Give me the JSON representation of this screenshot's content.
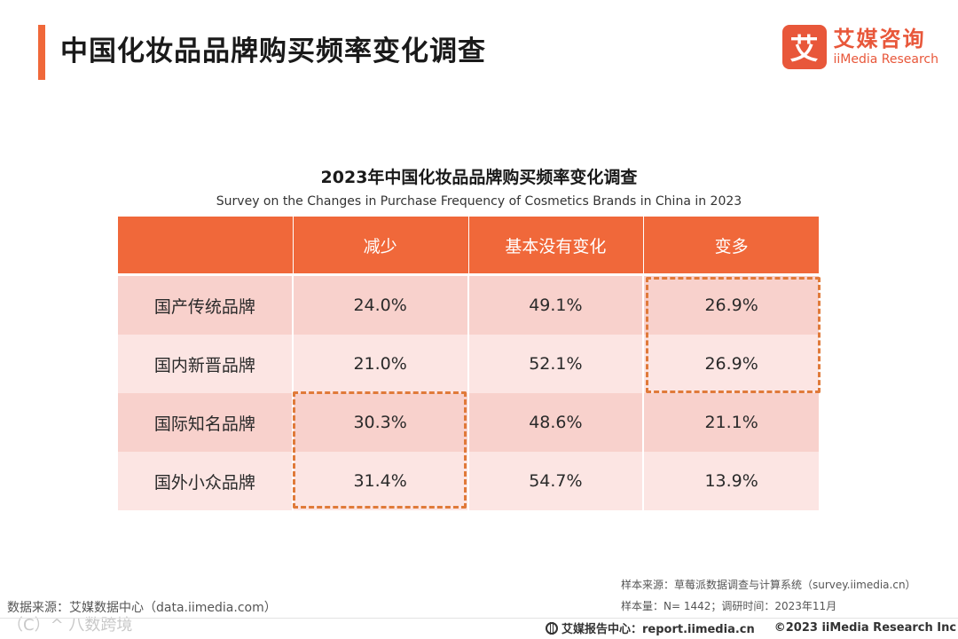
{
  "header": {
    "title": "中国化妆品品牌购买频率变化调查",
    "logo": {
      "mark": "艾",
      "name_cn": "艾媒咨询",
      "name_en": "iiMedia Research"
    }
  },
  "chart_data": {
    "type": "table",
    "title": "2023年中国化妆品品牌购买频率变化调查",
    "subtitle": "Survey on the Changes in Purchase Frequency of Cosmetics Brands in China in 2023",
    "columns": [
      "",
      "减少",
      "基本没有变化",
      "变多"
    ],
    "rows": [
      {
        "label": "国产传统品牌",
        "values": [
          "24.0%",
          "49.1%",
          "26.9%"
        ]
      },
      {
        "label": "国内新晋品牌",
        "values": [
          "21.0%",
          "52.1%",
          "26.9%"
        ]
      },
      {
        "label": "国际知名品牌",
        "values": [
          "30.3%",
          "48.6%",
          "21.1%"
        ]
      },
      {
        "label": "国外小众品牌",
        "values": [
          "31.4%",
          "54.7%",
          "13.9%"
        ]
      }
    ],
    "highlights": [
      {
        "column": "变多",
        "rows": [
          "国产传统品牌",
          "国内新晋品牌"
        ]
      },
      {
        "column": "减少",
        "rows": [
          "国际知名品牌",
          "国外小众品牌"
        ]
      }
    ]
  },
  "source": {
    "sample_source": "样本来源：草莓派数据调查与计算系统（survey.iimedia.cn）",
    "sample_size": "样本量：N= 1442；调研时间：2023年11月",
    "data_source": "数据来源：艾媒数据中心（data.iimedia.com）"
  },
  "watermark": "（C）^ 八数跨境",
  "footer": {
    "report_center": "艾媒报告中心：report.iimedia.cn",
    "copyright": "©2023  iiMedia Research  Inc"
  },
  "colors": {
    "accent": "#f0683a",
    "row_dark": "#f8d1cc",
    "row_light": "#fce5e3",
    "highlight": "#e07a3a"
  }
}
